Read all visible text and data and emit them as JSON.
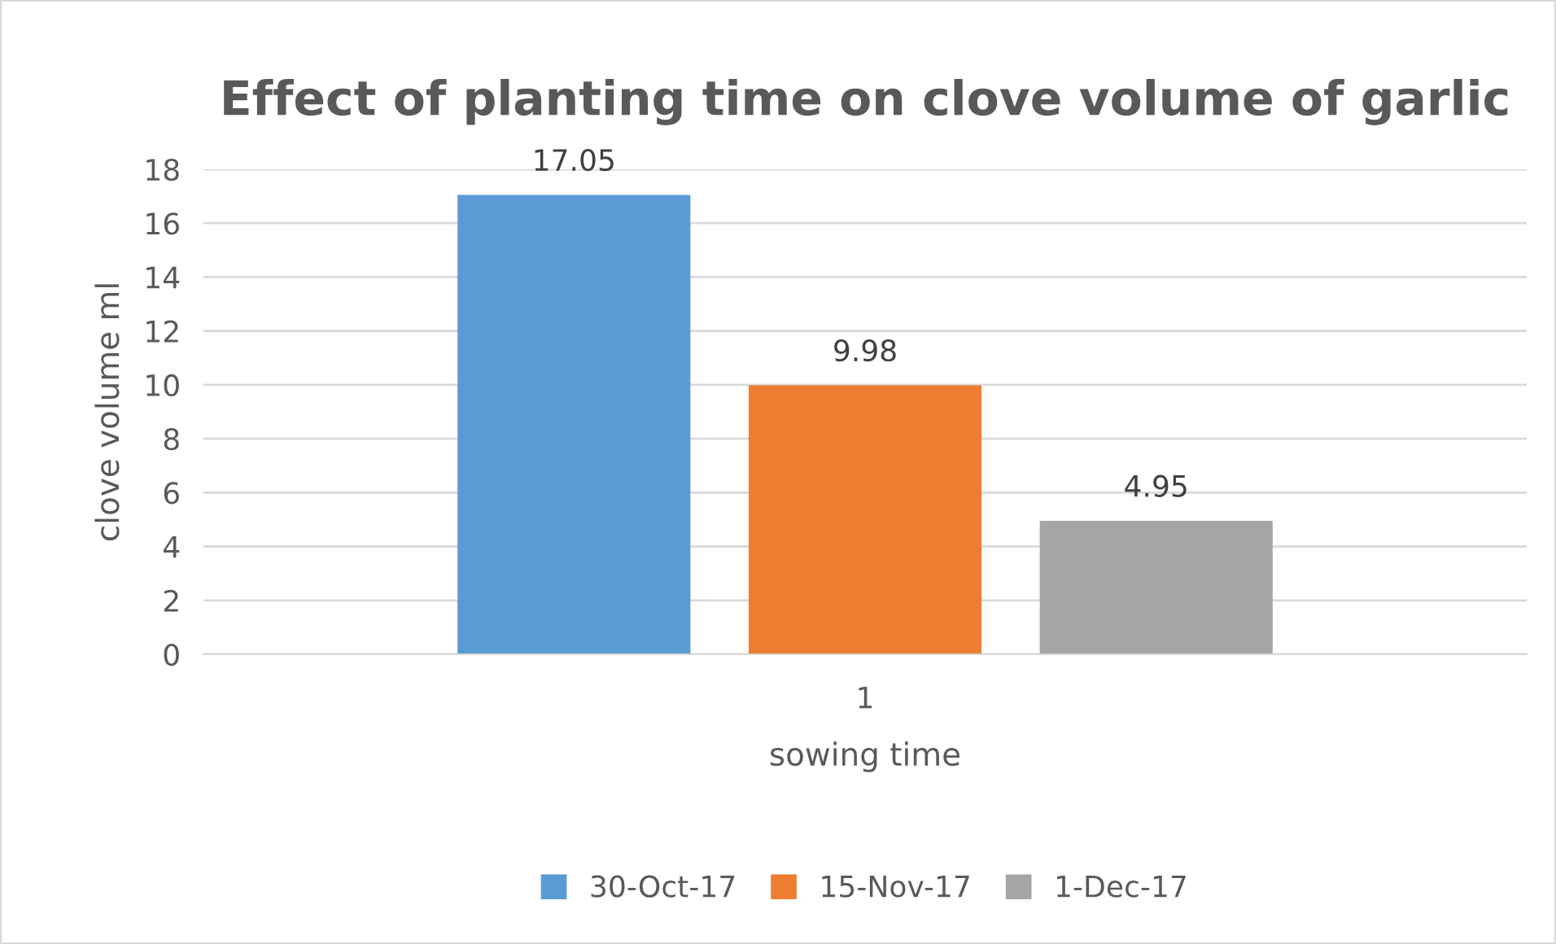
{
  "chart_data": {
    "type": "bar",
    "title": "Effect of planting time on clove volume of garlic",
    "xlabel": "sowing time",
    "ylabel": "clove volume ml",
    "categories": [
      "1"
    ],
    "series": [
      {
        "name": "30-Oct-17",
        "color": "#5b9bd5",
        "values": [
          17.05
        ]
      },
      {
        "name": "15-Nov-17",
        "color": "#ed7d31",
        "values": [
          9.98
        ]
      },
      {
        "name": "1-Dec-17",
        "color": "#a5a5a5",
        "values": [
          4.95
        ]
      }
    ],
    "ylim": [
      0,
      18
    ],
    "yticks": [
      0,
      2,
      4,
      6,
      8,
      10,
      12,
      14,
      16,
      18
    ],
    "grid": "y",
    "legend": "bottom",
    "data_labels": true
  }
}
